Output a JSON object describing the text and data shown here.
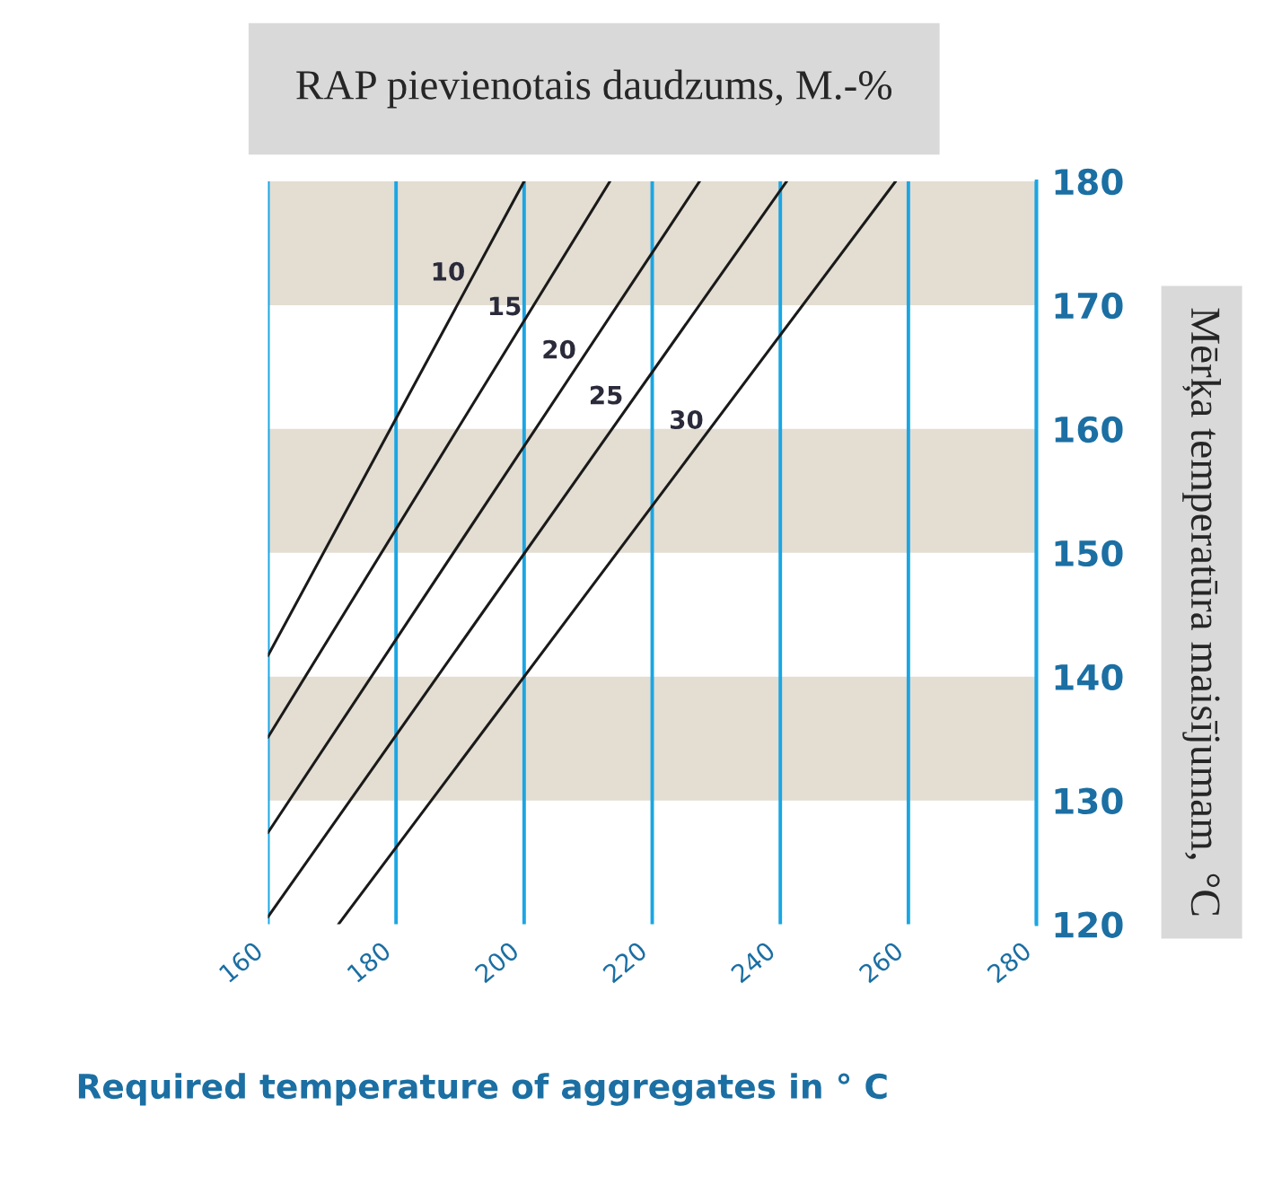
{
  "chart_data": {
    "type": "line",
    "title": "RAP pievienotais daudzums, M.-%",
    "xlabel": "Required temperature of aggregates in ° C",
    "ylabel": "Mērķa temperatūra maisījumam, °C",
    "xlim": [
      160,
      280
    ],
    "xticks": [
      160,
      180,
      200,
      220,
      240,
      260,
      280
    ],
    "ylim": [
      120,
      180
    ],
    "yticks": [
      120,
      130,
      140,
      150,
      160,
      170,
      180
    ],
    "grid": "x",
    "legend": false,
    "line_style": "solid",
    "marker": "none",
    "bands": [
      {
        "axis": "y",
        "from": 130,
        "to": 140,
        "color": "#e3ddd2"
      },
      {
        "axis": "y",
        "from": 150,
        "to": 160,
        "color": "#e3ddd2"
      },
      {
        "axis": "y",
        "from": 170,
        "to": 180,
        "color": "#e3ddd2"
      }
    ],
    "series": [
      {
        "name": "10",
        "color": "#1a1a1a",
        "x": [
          160,
          200
        ],
        "values": [
          141.7,
          180
        ]
      },
      {
        "name": "15",
        "color": "#1a1a1a",
        "x": [
          160,
          213.4
        ],
        "values": [
          135.1,
          180
        ]
      },
      {
        "name": "20",
        "color": "#1a1a1a",
        "x": [
          160,
          227.4
        ],
        "values": [
          127.4,
          180
        ]
      },
      {
        "name": "25",
        "color": "#1a1a1a",
        "x": [
          160,
          241
        ],
        "values": [
          120.6,
          180
        ]
      },
      {
        "name": "30",
        "color": "#1a1a1a",
        "x": [
          171,
          258
        ],
        "values": [
          120,
          180
        ]
      }
    ]
  }
}
